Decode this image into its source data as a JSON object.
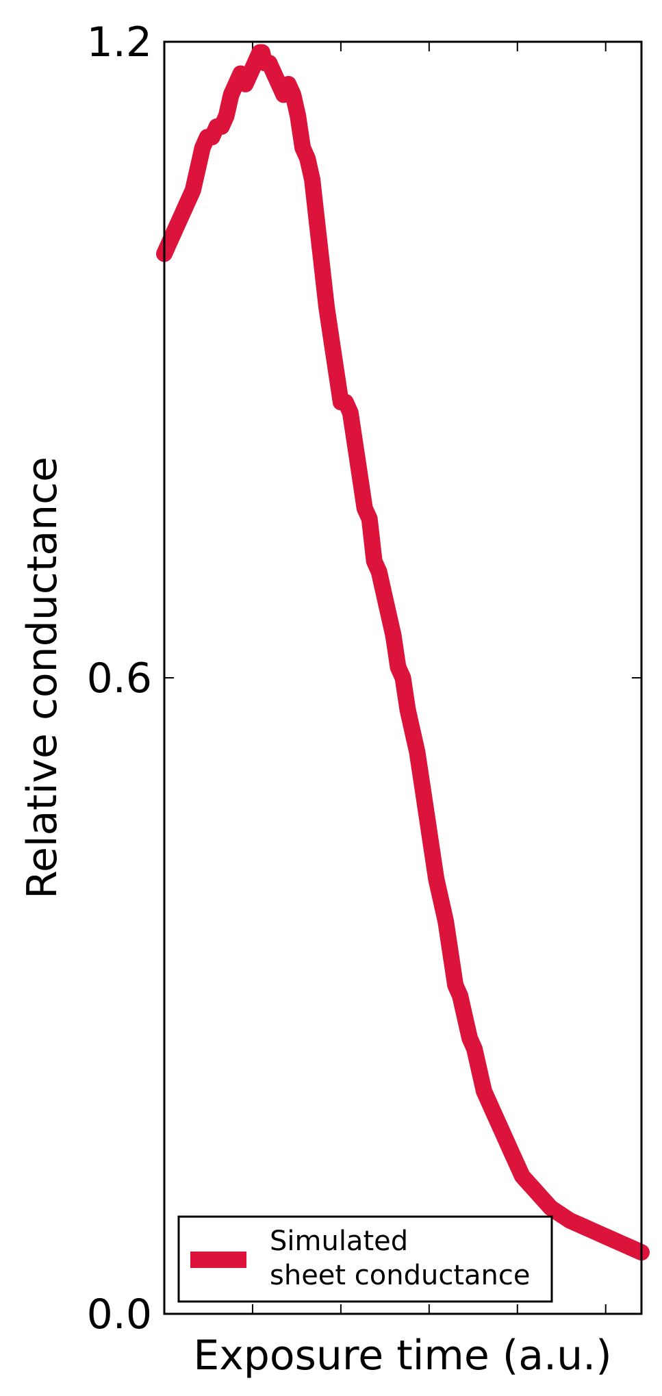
{
  "chart_data": {
    "type": "line",
    "title": "",
    "xlabel": "Exposure time (a.u.)",
    "ylabel": "Relative conductance",
    "xlim": [
      0,
      1
    ],
    "ylim": [
      0,
      1.2
    ],
    "y_ticks": [
      {
        "value": 0.0,
        "label": "0.0"
      },
      {
        "value": 0.6,
        "label": "0.6"
      },
      {
        "value": 1.2,
        "label": "1.2"
      }
    ],
    "x_tick_values": [
      0.185,
      0.37,
      0.555,
      0.74,
      0.925
    ],
    "x_tick_labels_shown": false,
    "grid": false,
    "legend": {
      "placement": "bottom-left",
      "entries": [
        {
          "line1": "Simulated",
          "line2": "sheet conductance",
          "color": "#DC143C"
        }
      ]
    },
    "series": [
      {
        "color": "#DC143C",
        "x": [
          0.0,
          0.02,
          0.04,
          0.06,
          0.07,
          0.08,
          0.09,
          0.1,
          0.11,
          0.12,
          0.13,
          0.14,
          0.15,
          0.16,
          0.17,
          0.18,
          0.19,
          0.2,
          0.205,
          0.21,
          0.22,
          0.23,
          0.24,
          0.25,
          0.26,
          0.27,
          0.28,
          0.29,
          0.3,
          0.31,
          0.32,
          0.33,
          0.34,
          0.35,
          0.36,
          0.37,
          0.38,
          0.39,
          0.4,
          0.41,
          0.42,
          0.43,
          0.44,
          0.45,
          0.46,
          0.47,
          0.48,
          0.49,
          0.5,
          0.51,
          0.52,
          0.53,
          0.54,
          0.55,
          0.56,
          0.57,
          0.58,
          0.59,
          0.6,
          0.61,
          0.62,
          0.63,
          0.64,
          0.65,
          0.66,
          0.67,
          0.68,
          0.69,
          0.7,
          0.71,
          0.72,
          0.73,
          0.74,
          0.75,
          0.76,
          0.77,
          0.78,
          0.79,
          0.8,
          0.81,
          0.82,
          0.83,
          0.84,
          0.85,
          0.86,
          0.87,
          0.88,
          0.89,
          0.9,
          0.91,
          0.92,
          0.93,
          0.94,
          0.95,
          0.96,
          0.97,
          0.98,
          0.99,
          1.0
        ],
        "y": [
          1.0,
          1.02,
          1.04,
          1.06,
          1.08,
          1.1,
          1.11,
          1.11,
          1.12,
          1.12,
          1.13,
          1.15,
          1.16,
          1.17,
          1.16,
          1.17,
          1.18,
          1.19,
          1.19,
          1.18,
          1.18,
          1.17,
          1.16,
          1.15,
          1.16,
          1.15,
          1.13,
          1.1,
          1.09,
          1.07,
          1.03,
          0.99,
          0.95,
          0.92,
          0.89,
          0.86,
          0.86,
          0.85,
          0.82,
          0.79,
          0.76,
          0.75,
          0.71,
          0.7,
          0.68,
          0.66,
          0.64,
          0.61,
          0.6,
          0.57,
          0.55,
          0.53,
          0.5,
          0.47,
          0.44,
          0.41,
          0.39,
          0.37,
          0.34,
          0.31,
          0.3,
          0.28,
          0.26,
          0.25,
          0.23,
          0.21,
          0.2,
          0.19,
          0.18,
          0.17,
          0.16,
          0.15,
          0.14,
          0.13,
          0.125,
          0.12,
          0.115,
          0.11,
          0.105,
          0.1,
          0.097,
          0.094,
          0.091,
          0.088,
          0.086,
          0.084,
          0.082,
          0.08,
          0.078,
          0.076,
          0.074,
          0.072,
          0.07,
          0.068,
          0.066,
          0.064,
          0.062,
          0.06,
          0.058
        ]
      }
    ]
  }
}
